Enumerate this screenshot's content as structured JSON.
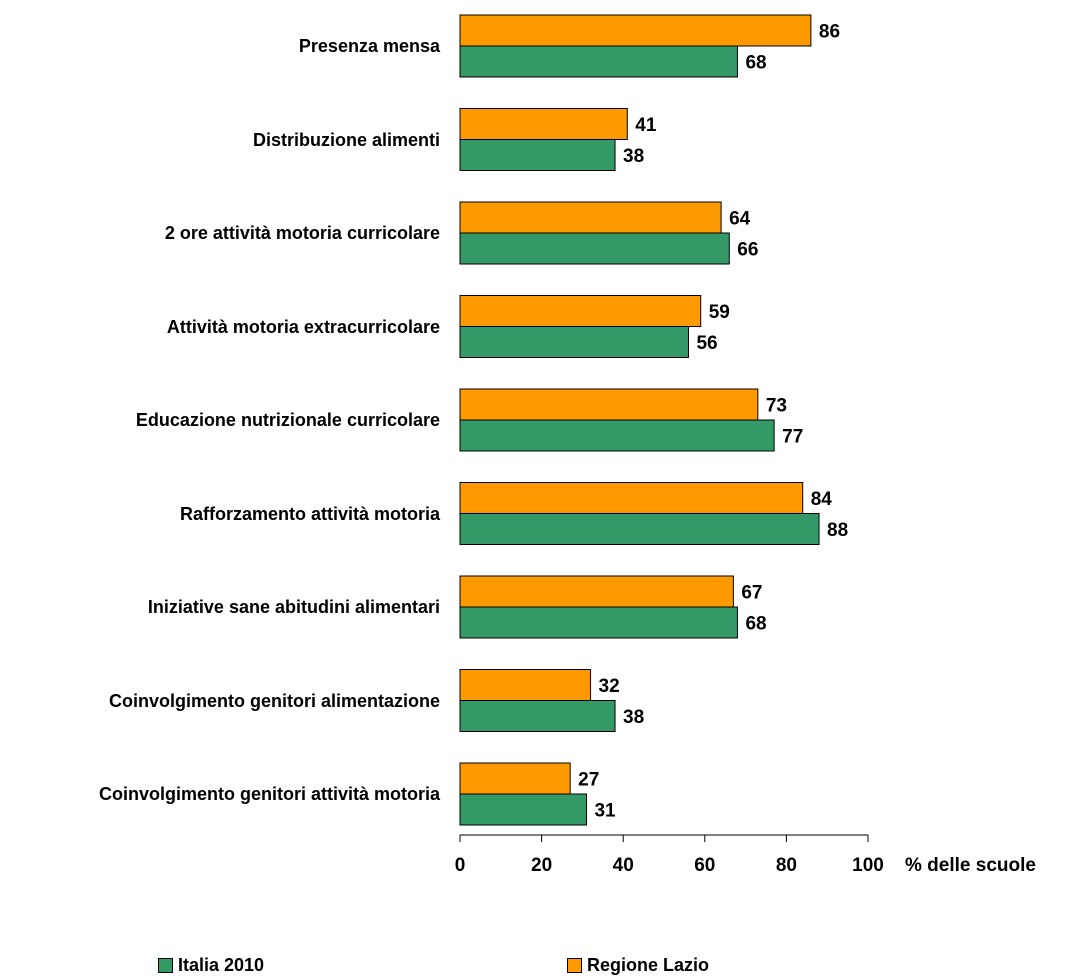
{
  "chart_data": {
    "type": "bar",
    "orientation": "horizontal",
    "categories": [
      "Presenza mensa",
      "Distribuzione alimenti",
      "2 ore attività motoria curricolare",
      "Attività motoria extracurricolare",
      "Educazione nutrizionale curricolare",
      "Rafforzamento attività motoria",
      "Iniziative sane abitudini alimentari",
      "Coinvolgimento genitori alimentazione",
      "Coinvolgimento genitori attività motoria"
    ],
    "series": [
      {
        "name": "Regione Lazio",
        "color": "#FF9900",
        "values": [
          86,
          41,
          64,
          59,
          73,
          84,
          67,
          32,
          27
        ]
      },
      {
        "name": "Italia 2010",
        "color": "#339966",
        "values": [
          68,
          38,
          66,
          56,
          77,
          88,
          68,
          38,
          31
        ]
      }
    ],
    "xlabel": "% delle scuole",
    "xlim": [
      0,
      100
    ],
    "xticks": [
      0,
      20,
      40,
      60,
      80,
      100
    ],
    "grid": false,
    "legend_placement": "bottom",
    "legend_order": [
      "Italia 2010",
      "Regione Lazio"
    ]
  }
}
